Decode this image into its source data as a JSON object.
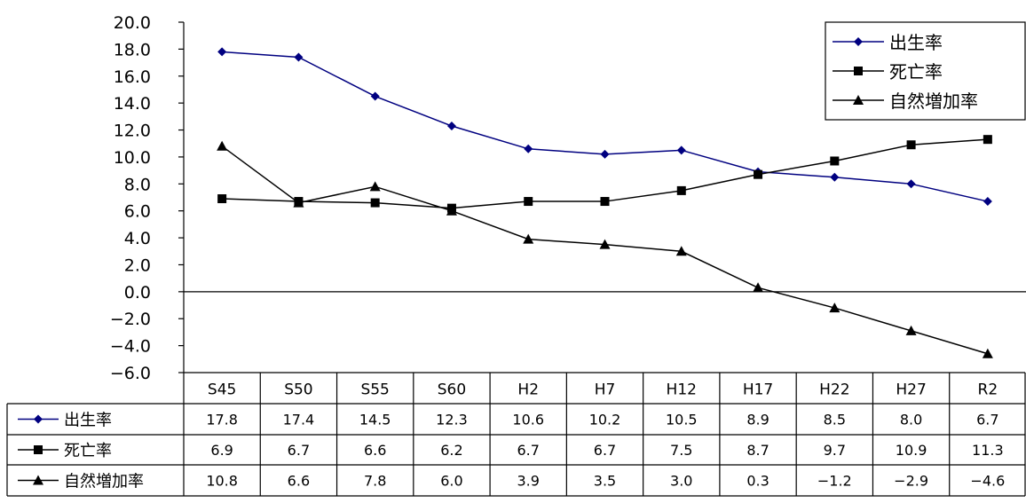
{
  "chart_data": {
    "type": "line",
    "title": "",
    "xlabel": "",
    "ylabel": "",
    "categories": [
      "S45",
      "S50",
      "S55",
      "S60",
      "H2",
      "H7",
      "H12",
      "H17",
      "H22",
      "H27",
      "R2"
    ],
    "ylim": [
      -6.0,
      20.0
    ],
    "yticks": [
      "20.0",
      "18.0",
      "16.0",
      "14.0",
      "12.0",
      "10.0",
      "8.0",
      "6.0",
      "4.0",
      "2.0",
      "0.0",
      "−2.0",
      "−4.0",
      "−6.0"
    ],
    "ytick_values": [
      20,
      18,
      16,
      14,
      12,
      10,
      8,
      6,
      4,
      2,
      0,
      -2,
      -4,
      -6
    ],
    "grid": false,
    "legend_position": "top-right",
    "series": [
      {
        "name": "出生率",
        "marker": "diamond",
        "color": "#000080",
        "values": [
          17.8,
          17.4,
          14.5,
          12.3,
          10.6,
          10.2,
          10.5,
          8.9,
          8.5,
          8.0,
          6.7
        ],
        "labels": [
          "17.8",
          "17.4",
          "14.5",
          "12.3",
          "10.6",
          "10.2",
          "10.5",
          "8.9",
          "8.5",
          "8.0",
          "6.7"
        ]
      },
      {
        "name": "死亡率",
        "marker": "square",
        "color": "#000000",
        "values": [
          6.9,
          6.7,
          6.6,
          6.2,
          6.7,
          6.7,
          7.5,
          8.7,
          9.7,
          10.9,
          11.3
        ],
        "labels": [
          "6.9",
          "6.7",
          "6.6",
          "6.2",
          "6.7",
          "6.7",
          "7.5",
          "8.7",
          "9.7",
          "10.9",
          "11.3"
        ]
      },
      {
        "name": "自然増加率",
        "marker": "triangle",
        "color": "#000000",
        "values": [
          10.8,
          6.6,
          7.8,
          6.0,
          3.9,
          3.5,
          3.0,
          0.3,
          -1.2,
          -2.9,
          -4.6
        ],
        "labels": [
          "10.8",
          "6.6",
          "7.8",
          "6.0",
          "3.9",
          "3.5",
          "3.0",
          "0.3",
          "−1.2",
          "−2.9",
          "−4.6"
        ]
      }
    ]
  }
}
